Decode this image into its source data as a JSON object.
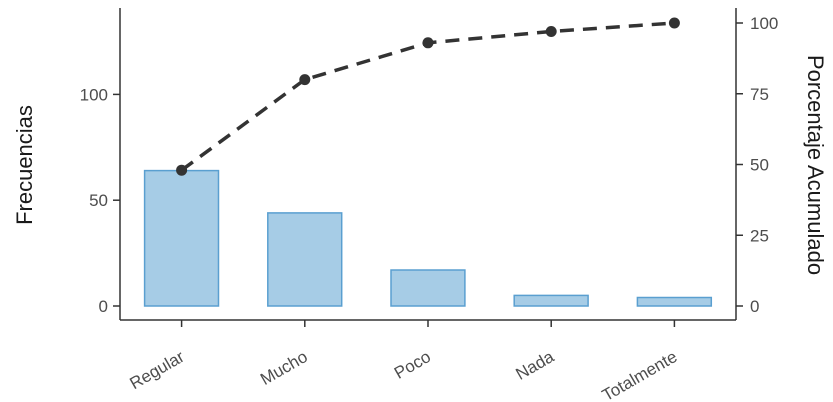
{
  "chart_data": {
    "type": "bar",
    "title": "",
    "categories": [
      "Regular",
      "Mucho",
      "Poco",
      "Nada",
      "Totalmente"
    ],
    "values": [
      64,
      44,
      17,
      5,
      4
    ],
    "cumulative_percent": [
      48,
      80,
      93,
      97,
      100
    ],
    "ylabel": "Frecuencias",
    "ylabel_right": "Porcentaje Acumulado",
    "ylim": [
      0,
      134
    ],
    "ylim_right": [
      0,
      100
    ],
    "yticks": [
      "0",
      "50",
      "100"
    ],
    "yticks_right": [
      "0",
      "25",
      "50",
      "75",
      "100"
    ],
    "bar_color": "#a6cce6",
    "bar_edge_color": "#5a9fd0",
    "line_color": "#333333",
    "grid": false
  }
}
